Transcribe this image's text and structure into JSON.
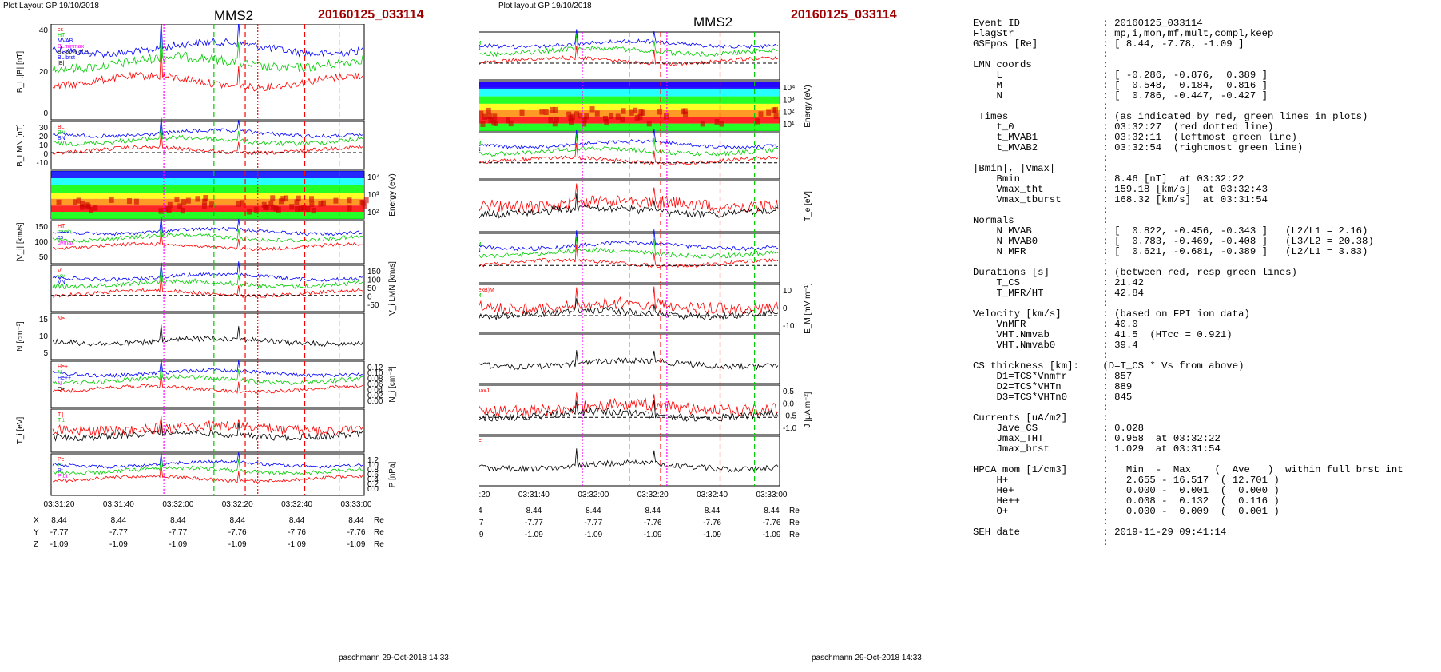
{
  "left": {
    "header": "Plot Layout GP 19/10/2018",
    "title": "MMS2",
    "event": "20160125_033114",
    "signature": "paschmann 29-Oct-2018 14:33",
    "time_ticks": [
      "03:31:20",
      "03:31:40",
      "03:32:00",
      "03:32:20",
      "03:32:40",
      "03:33:00"
    ],
    "pos": {
      "X": [
        "8.44",
        "8.44",
        "8.44",
        "8.44",
        "8.44",
        "8.44"
      ],
      "Y": [
        "-7.77",
        "-7.77",
        "-7.77",
        "-7.76",
        "-7.76",
        "-7.76"
      ],
      "Z": [
        "-1.09",
        "-1.09",
        "-1.09",
        "-1.09",
        "-1.09",
        "-1.09"
      ],
      "unit": "Re"
    },
    "panels": [
      {
        "ylabel": "B_L,|B| [nT]",
        "ticks": [
          "40",
          "20",
          "0"
        ],
        "legend": [
          "cs",
          "HT",
          "MVAB",
          "BLminmax",
          "BL 50% of BL",
          "BL brst",
          "|B|"
        ]
      },
      {
        "ylabel": "B_LMN [nT]",
        "ticks": [
          "30",
          "20",
          "10",
          "0",
          "-10"
        ],
        "legend": [
          "BL",
          "BM",
          "BN"
        ]
      },
      {
        "ylabel": "Energy (eV)",
        "ticks": [
          "10⁴",
          "10³",
          "10²"
        ],
        "legend": []
      },
      {
        "ylabel": "|V_i| [km/s]",
        "ticks": [
          "150",
          "100",
          "50"
        ],
        "legend": [
          "HT",
          "mvab",
          "cs",
          "dvmax"
        ]
      },
      {
        "ylabel": "V_i LMN [km/s]",
        "ticks": [
          "150",
          "100",
          "50",
          "0",
          "-50"
        ],
        "legend": [
          "VL",
          "VM",
          "VN"
        ]
      },
      {
        "ylabel": "N [cm⁻³]",
        "ticks": [
          "15",
          "10",
          "5"
        ],
        "legend": [
          "Ne"
        ]
      },
      {
        "ylabel": "N_i [cm⁻³]",
        "ticks": [
          "0.12",
          "0.10",
          "0.08",
          "0.06",
          "0.04",
          "0.02",
          "0.00"
        ],
        "legend": [
          "He+",
          "N",
          "He++",
          "N",
          "O+"
        ]
      },
      {
        "ylabel": "T_i [eV]",
        "ticks": [],
        "legend": [
          "T∥",
          "T⊥"
        ]
      },
      {
        "ylabel": "P [nPa]",
        "ticks": [
          "1.2",
          "1.0",
          "0.8",
          "0.6",
          "0.4",
          "0.2",
          "0.0"
        ],
        "legend": [
          "Pe",
          "Pi",
          "Pt",
          "Ptot"
        ]
      }
    ]
  },
  "mid": {
    "header": "Plot layout GP 19/10/2018",
    "title": "MMS2",
    "event": "20160125_033114",
    "signature": "paschmann 29-Oct-2018 14:33",
    "time_ticks": [
      "03:31:20",
      "03:31:40",
      "03:32:00",
      "03:32:20",
      "03:32:40",
      "03:33:00"
    ],
    "pos": {
      "X": [
        "8.44",
        "8.44",
        "8.44",
        "8.44",
        "8.44",
        "8.44"
      ],
      "Y": [
        "-7.77",
        "-7.77",
        "-7.77",
        "-7.76",
        "-7.76",
        "-7.76"
      ],
      "Z": [
        "-1.09",
        "-1.09",
        "-1.09",
        "-1.09",
        "-1.09",
        "-1.09"
      ],
      "unit": "Re"
    },
    "panels": [
      {
        "ylabel": "B_LMN [nT]",
        "ticks": [
          "30",
          "20",
          "10",
          "0",
          "-10"
        ],
        "legend": [
          "BL",
          "BM",
          "BN"
        ]
      },
      {
        "ylabel": "Energy (eV)",
        "ticks": [
          "10⁴",
          "10³",
          "10²",
          "10¹"
        ],
        "legend": []
      },
      {
        "ylabel": "V_e LMN [km/s]",
        "ticks": [
          "400",
          "200",
          "0",
          "-200",
          "-400"
        ],
        "legend": [
          "VL",
          "VM",
          "VN"
        ]
      },
      {
        "ylabel": "T_e [eV]",
        "ticks": [],
        "legend": [
          "T∥",
          "T⊥"
        ]
      },
      {
        "ylabel": "E_LMN [mV m⁻¹]",
        "ticks": [
          "10",
          "5",
          "0",
          "-5"
        ],
        "legend": [
          "EL",
          "EM",
          "EN"
        ]
      },
      {
        "ylabel": "E_M [mV m⁻¹]",
        "ticks": [
          "10",
          "0",
          "-10"
        ],
        "legend": [
          "(VexB)M",
          "EM"
        ]
      },
      {
        "ylabel": "|J| [μA m⁻²]",
        "ticks": [
          "1.0",
          "0.8",
          "0.6",
          "0.4",
          "0.2"
        ],
        "legend": [
          "|J|"
        ]
      },
      {
        "ylabel": "J [μA m⁻²]",
        "ticks": [
          "0.5",
          "0.0",
          "-0.5",
          "-1.0"
        ],
        "legend": [
          "JmaxJ",
          "J"
        ]
      },
      {
        "ylabel": "J*E' [nW m⁻³]",
        "ticks": [
          "1.0",
          "0.5",
          "0.0",
          "-0.5"
        ],
        "legend": [
          "J*E'"
        ]
      }
    ]
  },
  "colors": {
    "red": "#ff0000",
    "green": "#00cc00",
    "blue": "#0000ff",
    "magenta": "#ff00ff",
    "black": "#000000",
    "event": "#a00000"
  },
  "right": {
    "lines": [
      "Event ID              : 20160125_033114",
      "FlagStr               : mp,i,mon,mf,mult,compl,keep",
      "GSEpos [Re]           : [ 8.44, -7.78, -1.09 ]",
      "                      :",
      "LMN coords            :",
      "    L                 : [ -0.286, -0.876,  0.389 ]",
      "    M                 : [  0.548,  0.184,  0.816 ]",
      "    N                 : [  0.786, -0.447, -0.427 ]",
      "                      :",
      " Times                : (as indicated by red, green lines in plots)",
      "    t_0               : 03:32:27  (red dotted line)",
      "    t_MVAB1           : 03:32:11  (leftmost green line)",
      "    t_MVAB2           : 03:32:54  (rightmost green line)",
      "                      :",
      "|Bmin|, |Vmax|        :",
      "    Bmin              : 8.46 [nT]  at 03:32:22",
      "    Vmax_tht          : 159.18 [km/s]  at 03:32:43",
      "    Vmax_tburst       : 168.32 [km/s]  at 03:31:54",
      "                      :",
      "Normals               :",
      "    N MVAB            : [  0.822, -0.456, -0.343 ]   (L2/L1 = 2.16)",
      "    N MVAB0           : [  0.783, -0.469, -0.408 ]   (L3/L2 = 20.38)",
      "    N MFR             : [  0.621, -0.681, -0.389 ]   (L2/L1 = 3.83)",
      "                      :",
      "Durations [s]         : (between red, resp green lines)",
      "    T_CS              : 21.42",
      "    T_MFR/HT          : 42.84",
      "                      :",
      "Velocity [km/s]       : (based on FPI ion data)",
      "    VnMFR             : 40.0",
      "    VHT.Nmvab         : 41.5  (HTcc = 0.921)",
      "    VHT.Nmvab0        : 39.4",
      "                      :",
      "CS thickness [km]:    (D=T_CS * Vs from above)",
      "    D1=TCS*Vnmfr      : 857",
      "    D2=TCS*VHTn       : 889",
      "    D3=TCS*VHTn0      : 845",
      "                      :",
      "Currents [uA/m2]      :",
      "    Jave_CS           : 0.028",
      "    Jmax_THT          : 0.958  at 03:32:22",
      "    Jmax_brst         : 1.029  at 03:31:54",
      "                      :",
      "HPCA mom [1/cm3]      :   Min  -  Max    (  Ave   )  within full brst int",
      "    H+                :   2.655 - 16.517  ( 12.701 )",
      "    He+               :   0.000 -  0.001  (  0.000 )",
      "    He++              :   0.008 -  0.132  (  0.116 )",
      "    O+                :   0.000 -  0.009  (  0.001 )",
      "                      :",
      "SEH date              : 2019-11-29 09:41:14",
      "                      :"
    ]
  },
  "chart_data": [
    {
      "type": "line",
      "title": "MMS2 20160125_033114",
      "x": [
        "03:31:20",
        "03:31:40",
        "03:32:00",
        "03:32:20",
        "03:32:40",
        "03:33:00"
      ],
      "series": [
        {
          "name": "BL",
          "values": [
            10,
            22,
            -8,
            -5,
            30,
            35
          ]
        },
        {
          "name": "|B|",
          "values": [
            28,
            33,
            27,
            25,
            38,
            40
          ]
        }
      ],
      "ylabel": "B_L,|B| [nT]",
      "ylim": [
        -12,
        45
      ]
    },
    {
      "type": "line",
      "x": [
        "03:31:40",
        "03:31:50",
        "03:32:00",
        "03:32:10",
        "03:32:20",
        "03:32:30",
        "03:32:40",
        "03:32:50",
        "03:33:00"
      ],
      "series": [
        {
          "name": "N",
          "values": [
            0.055,
            0.062,
            0.12,
            0.124,
            0.112,
            0.103,
            0.08,
            0.05,
            0.03
          ]
        }
      ],
      "ylabel": "N_i [cm⁻³]",
      "ylim": [
        0,
        0.13
      ]
    }
  ]
}
